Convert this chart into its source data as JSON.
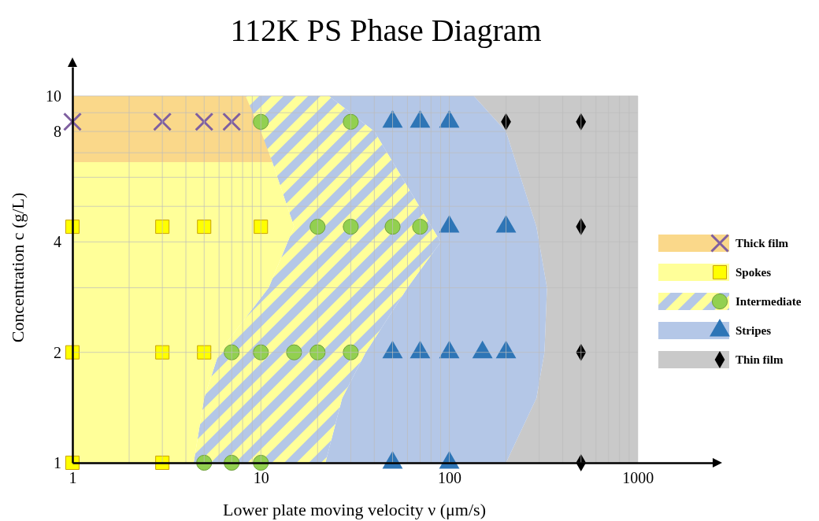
{
  "chart_data": {
    "type": "scatter",
    "title": "112K PS Phase Diagram",
    "xlabel": "Lower plate moving velocity  ν  (μm/s)",
    "ylabel": "Concentration c (g/L)",
    "log": "xy",
    "xlim": [
      1,
      2500
    ],
    "ylim": [
      1,
      12
    ],
    "xticks": [
      1,
      {
        "value": 2,
        "label": null
      },
      {
        "value": 3,
        "label": null
      },
      {
        "value": 4,
        "label": null
      },
      {
        "value": 5,
        "label": null
      },
      {
        "value": 6,
        "label": null
      },
      {
        "value": 7,
        "label": null
      },
      {
        "value": 8,
        "label": null
      },
      {
        "value": 9,
        "label": null
      },
      10,
      {
        "value": 20,
        "label": null
      },
      {
        "value": 30,
        "label": null
      },
      {
        "value": 40,
        "label": null
      },
      {
        "value": 50,
        "label": null
      },
      {
        "value": 60,
        "label": null
      },
      {
        "value": 70,
        "label": null
      },
      {
        "value": 80,
        "label": null
      },
      {
        "value": 90,
        "label": null
      },
      100,
      {
        "value": 200,
        "label": null
      },
      {
        "value": 300,
        "label": null
      },
      {
        "value": 400,
        "label": null
      },
      {
        "value": 500,
        "label": null
      },
      {
        "value": 600,
        "label": null
      },
      {
        "value": 700,
        "label": null
      },
      {
        "value": 800,
        "label": null
      },
      {
        "value": 900,
        "label": null
      },
      1000
    ],
    "yticks": [
      1,
      2,
      {
        "value": 3,
        "label": null
      },
      4,
      {
        "value": 5,
        "label": null
      },
      {
        "value": 6,
        "label": null
      },
      {
        "value": 7,
        "label": null
      },
      8,
      {
        "value": 9,
        "label": null
      },
      10
    ],
    "grid": true,
    "legend": "right",
    "series": [
      {
        "type": "area",
        "color": "#c9c9c9",
        "x": [
          135,
          1000,
          1000,
          200,
          290,
          320,
          330,
          290,
          200
        ],
        "values": [
          10,
          10,
          1,
          1,
          1.5,
          2,
          3,
          4.4,
          8
        ]
      },
      {
        "type": "area",
        "color": "#b4c7e7",
        "x": [
          23,
          135,
          200,
          290,
          330,
          320,
          290,
          200,
          22,
          27,
          36,
          60,
          90,
          40
        ],
        "values": [
          10,
          10,
          8,
          4.4,
          3,
          2,
          1.5,
          1,
          1,
          1.5,
          2,
          3,
          4,
          8
        ]
      },
      {
        "type": "area",
        "color": "#b4c7e7",
        "x": [
          8.3,
          23,
          40,
          90,
          60,
          36,
          27,
          22,
          4.4,
          5,
          6,
          11,
          15,
          11.5
        ],
        "values": [
          10,
          10,
          8,
          4,
          3,
          2,
          1.5,
          1,
          1,
          1.5,
          2,
          3,
          4.4,
          6.6
        ]
      },
      {
        "type": "area",
        "color": "#ffff99",
        "x": [
          1,
          11.5,
          15,
          11,
          6,
          5,
          4.4,
          null
        ],
        "values": [
          6.6,
          6.6,
          4.4,
          3,
          2,
          1.5,
          1,
          null
        ]
      },
      {
        "type": "area",
        "color": "#fad88a",
        "x": [
          1,
          8.3,
          10,
          11.5,
          1
        ],
        "values": [
          10,
          10,
          8,
          6.6,
          6.6
        ]
      },
      {
        "name": "Thick film",
        "marker": "cross",
        "color": "#7f5fa0",
        "x": [
          1,
          3,
          5,
          7
        ],
        "values": [
          8.5,
          8.5,
          8.5,
          8.5
        ]
      },
      {
        "name": "Spokes",
        "marker": "square",
        "color": "#ffff00",
        "x": [
          1,
          3,
          5,
          10,
          1,
          3,
          5,
          1,
          3
        ],
        "values": [
          4.4,
          4.4,
          4.4,
          4.4,
          2,
          2,
          2,
          1,
          1
        ]
      },
      {
        "name": "Intermediate",
        "marker": "circle",
        "color": "#92d050",
        "x": [
          10,
          30,
          20,
          30,
          50,
          70,
          7,
          10,
          15,
          20,
          30,
          5,
          7,
          10
        ],
        "values": [
          8.5,
          8.5,
          4.4,
          4.4,
          4.4,
          4.4,
          2,
          2,
          2,
          2,
          2,
          1,
          1,
          1
        ]
      },
      {
        "name": "Stripes",
        "marker": "triangle",
        "color": "#2e75b6",
        "x": [
          50,
          70,
          100,
          100,
          200,
          50,
          70,
          100,
          150,
          200,
          50,
          100
        ],
        "values": [
          8.5,
          8.5,
          8.5,
          4.4,
          4.4,
          2,
          2,
          2,
          2,
          2,
          1,
          1
        ]
      },
      {
        "name": "Thin film",
        "marker": "diamond",
        "color": "#000000",
        "x": [
          200,
          500,
          500,
          500,
          500
        ],
        "values": [
          8.5,
          8.5,
          4.4,
          2,
          1
        ]
      }
    ]
  }
}
